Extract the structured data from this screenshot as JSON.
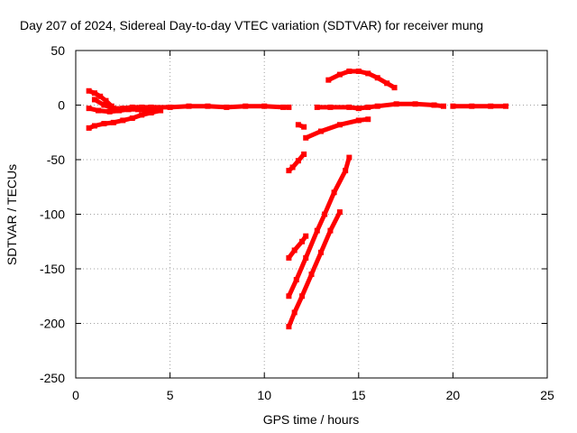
{
  "chart_data": {
    "type": "scatter",
    "title": "Day 207 of 2024, Sidereal Day-to-day VTEC variation (SDTVAR) for receiver mung",
    "xlabel": "GPS time / hours",
    "ylabel": "SDTVAR / TECUs",
    "xlim": [
      0,
      25
    ],
    "ylim": [
      -250,
      50
    ],
    "xticks": [
      0,
      5,
      10,
      15,
      20,
      25
    ],
    "yticks": [
      50,
      0,
      -50,
      -100,
      -150,
      -200,
      -250
    ],
    "grid": true,
    "marker_color": "#ff0000",
    "series": [
      {
        "name": "arc-1",
        "points": [
          [
            0.7,
            13
          ],
          [
            1.0,
            11
          ],
          [
            1.3,
            8
          ],
          [
            1.6,
            4
          ],
          [
            1.9,
            -1
          ],
          [
            2.1,
            -5
          ]
        ]
      },
      {
        "name": "arc-2",
        "points": [
          [
            0.7,
            -3
          ],
          [
            1.2,
            -5
          ],
          [
            1.8,
            -6
          ],
          [
            2.3,
            -5
          ],
          [
            2.8,
            -4
          ],
          [
            3.3,
            -4
          ],
          [
            3.8,
            -5
          ],
          [
            4.2,
            -5
          ]
        ]
      },
      {
        "name": "arc-3",
        "points": [
          [
            1.0,
            5
          ],
          [
            1.5,
            0
          ],
          [
            2.0,
            -3
          ],
          [
            2.5,
            -3
          ],
          [
            3.0,
            -2
          ],
          [
            3.5,
            -2
          ],
          [
            4.0,
            -2
          ],
          [
            5.0,
            -2
          ],
          [
            6.0,
            -1
          ],
          [
            7.0,
            -1
          ],
          [
            8.0,
            -2
          ],
          [
            9.0,
            -1
          ],
          [
            10.0,
            -1
          ],
          [
            11.0,
            -2
          ],
          [
            11.3,
            -2
          ]
        ]
      },
      {
        "name": "arc-4",
        "points": [
          [
            0.7,
            -21
          ],
          [
            1.0,
            -19
          ],
          [
            1.5,
            -17
          ],
          [
            2.0,
            -16
          ],
          [
            2.5,
            -14
          ],
          [
            3.0,
            -12
          ],
          [
            3.5,
            -9
          ],
          [
            4.0,
            -7
          ],
          [
            4.5,
            -5
          ]
        ]
      },
      {
        "name": "arc-5",
        "points": [
          [
            13.4,
            23
          ],
          [
            14.0,
            28
          ],
          [
            14.5,
            31
          ],
          [
            15.0,
            31
          ],
          [
            15.5,
            29
          ],
          [
            16.0,
            25
          ],
          [
            16.5,
            20
          ],
          [
            16.9,
            16
          ]
        ]
      },
      {
        "name": "arc-6",
        "points": [
          [
            12.8,
            -2
          ],
          [
            13.5,
            -2
          ],
          [
            14.5,
            -2
          ],
          [
            15.0,
            -3
          ],
          [
            15.5,
            -2
          ],
          [
            16.0,
            -1
          ],
          [
            17.0,
            1
          ],
          [
            18.0,
            1
          ],
          [
            19.0,
            0
          ],
          [
            19.5,
            -1
          ]
        ]
      },
      {
        "name": "arc-7",
        "points": [
          [
            20.0,
            -1
          ],
          [
            21.0,
            -1
          ],
          [
            22.0,
            -1
          ],
          [
            22.8,
            -1
          ]
        ]
      },
      {
        "name": "arc-8",
        "points": [
          [
            12.2,
            -30
          ],
          [
            13.0,
            -24
          ],
          [
            14.0,
            -18
          ],
          [
            15.0,
            -14
          ],
          [
            15.5,
            -13
          ]
        ]
      },
      {
        "name": "arc-9",
        "points": [
          [
            11.3,
            -60
          ],
          [
            11.5,
            -57
          ],
          [
            11.8,
            -51
          ],
          [
            12.1,
            -45
          ]
        ]
      },
      {
        "name": "arc-10",
        "points": [
          [
            11.3,
            -140
          ],
          [
            11.6,
            -133
          ],
          [
            12.0,
            -125
          ],
          [
            12.2,
            -120
          ]
        ]
      },
      {
        "name": "arc-11",
        "points": [
          [
            11.3,
            -175
          ],
          [
            11.7,
            -160
          ],
          [
            12.2,
            -140
          ],
          [
            12.8,
            -115
          ],
          [
            13.2,
            -100
          ],
          [
            13.7,
            -80
          ],
          [
            14.3,
            -60
          ],
          [
            14.5,
            -48
          ]
        ]
      },
      {
        "name": "arc-12",
        "points": [
          [
            11.3,
            -203
          ],
          [
            11.6,
            -190
          ],
          [
            12.0,
            -175
          ],
          [
            12.5,
            -155
          ],
          [
            13.0,
            -135
          ],
          [
            13.5,
            -115
          ],
          [
            14.0,
            -98
          ]
        ]
      },
      {
        "name": "arc-13",
        "points": [
          [
            11.8,
            -18
          ],
          [
            12.1,
            -20
          ]
        ]
      }
    ]
  }
}
